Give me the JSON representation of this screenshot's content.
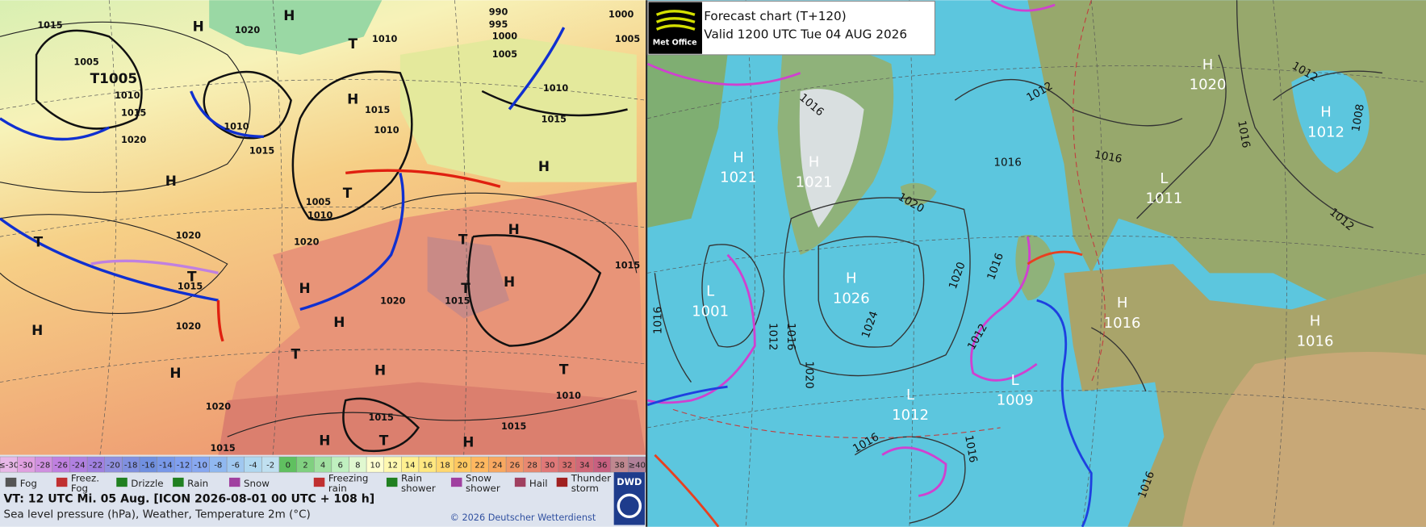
{
  "left_map": {
    "pressure_labels": [
      "1015",
      "1020",
      "1010",
      "990",
      "995",
      "1000",
      "1005",
      "1000",
      "1005",
      "1005",
      "1010",
      "1015",
      "1020",
      "1010",
      "1015",
      "1015",
      "1010",
      "1015",
      "1010",
      "1005",
      "1010",
      "1020",
      "1020",
      "1015",
      "1020",
      "1020",
      "1015",
      "1015",
      "1010",
      "1020",
      "1015",
      "1015",
      "1015"
    ],
    "centers": [
      "H",
      "T",
      "H",
      "H",
      "T1005",
      "H",
      "T",
      "H",
      "T",
      "T",
      "T",
      "H",
      "H",
      "H",
      "T",
      "H",
      "H",
      "T",
      "H",
      "H",
      "H",
      "T",
      "H",
      "T"
    ],
    "temperature_scale": [
      "≤-30",
      "-30",
      "-28",
      "-26",
      "-24",
      "-22",
      "-20",
      "-18",
      "-16",
      "-14",
      "-12",
      "-10",
      "-8",
      "-6",
      "-4",
      "-2",
      "0",
      "2",
      "4",
      "6",
      "8",
      "10",
      "12",
      "14",
      "16",
      "18",
      "20",
      "22",
      "24",
      "26",
      "28",
      "30",
      "32",
      "34",
      "36",
      "38",
      "≥40"
    ],
    "legend": [
      [
        "Fog"
      ],
      [
        "Freez.",
        "Fog"
      ],
      [
        "Drizzle"
      ],
      [
        "Rain"
      ],
      [
        "Snow"
      ],
      [
        "Freezing",
        "rain"
      ],
      [
        "Rain",
        "shower"
      ],
      [
        "Snow",
        "shower"
      ],
      [
        "Hail"
      ],
      [
        "Thunder",
        "storm"
      ]
    ],
    "valid_time": "VT: 12 UTC Mi.  05 Aug. [ICON 2026-08-01  00 UTC + 108 h]",
    "description": "Sea level pressure (hPa), Weather, Temperature 2m (°C)",
    "copyright": "© 2026 Deutscher Wetterdienst",
    "logo": "DWD"
  },
  "right_map": {
    "title": "Forecast chart (T+120)",
    "valid": "Valid 1200 UTC Tue 04 AUG 2026",
    "logo": "Met Office",
    "centers": [
      {
        "type": "H",
        "pressure": "1020"
      },
      {
        "type": "H",
        "pressure": "1012"
      },
      {
        "type": "L",
        "pressure": "1011"
      },
      {
        "type": "H",
        "pressure": "1021"
      },
      {
        "type": "H",
        "pressure": "1021"
      },
      {
        "type": "H",
        "pressure": "1026"
      },
      {
        "type": "L",
        "pressure": "1001"
      },
      {
        "type": "H",
        "pressure": "1016"
      },
      {
        "type": "H",
        "pressure": "1016"
      },
      {
        "type": "L",
        "pressure": "1012"
      },
      {
        "type": "L",
        "pressure": "1009"
      }
    ],
    "isobar_labels": [
      "1016",
      "1012",
      "1016",
      "1016",
      "1012",
      "1016",
      "1008",
      "1012",
      "1020",
      "1020",
      "1016",
      "1024",
      "1012",
      "1016",
      "1012",
      "1020",
      "1016",
      "1016",
      "1016",
      "1016"
    ]
  }
}
